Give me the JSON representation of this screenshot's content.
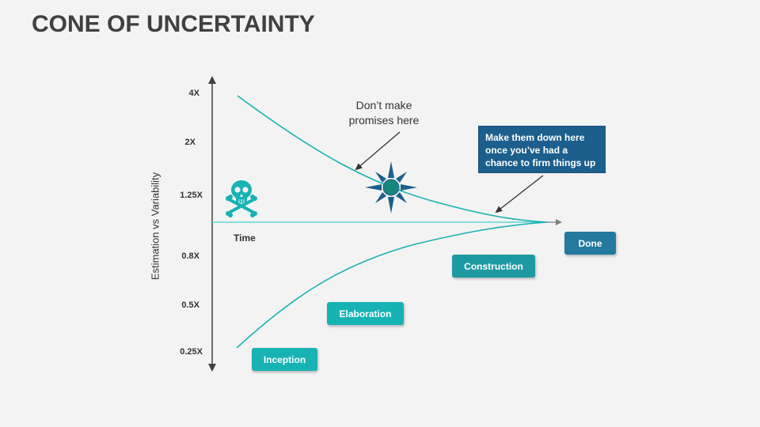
{
  "title": "CONE OF UNCERTAINTY",
  "y_axis_title": "Estimation vs Variability",
  "x_axis_label": "Time",
  "y_tick_labels": [
    "4X",
    "2X",
    "1.25X",
    "0.8X",
    "0.5X",
    "0.25X"
  ],
  "annotation_note": "Don’t make promises here",
  "callout": {
    "line1": "Make them down here",
    "line2": "once you’ve had a",
    "line3": "chance to firm things up"
  },
  "phases": {
    "inception": "Inception",
    "elaboration": "Elaboration",
    "construction": "Construction",
    "done": "Done"
  },
  "icons": {
    "danger": "skull-crossbones-icon",
    "burst": "compass-star-icon"
  },
  "colors": {
    "teal": "#17b2b3",
    "teal_light": "#5fd6d4",
    "blue_dark": "#1c5f8c",
    "done_blue": "#237a9e",
    "title": "#404040",
    "background": "#f3f3f3"
  }
}
